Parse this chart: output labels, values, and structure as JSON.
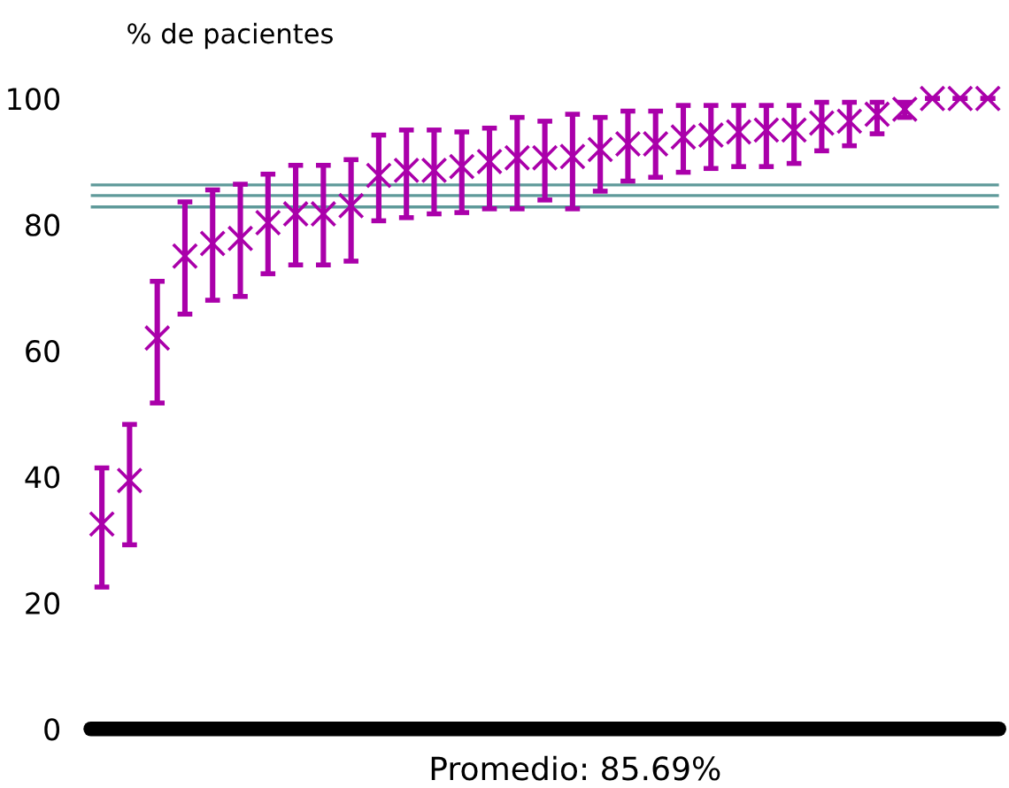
{
  "chart_data": {
    "type": "scatter",
    "ylabel": "% de pacientes",
    "annotations": [
      "Promedio: 85.69%"
    ],
    "categories": [
      null,
      null,
      null,
      null,
      null,
      null,
      null,
      null,
      null,
      null,
      null,
      null,
      null,
      null,
      null,
      null,
      null,
      null,
      null,
      null,
      null,
      null,
      null,
      null,
      null,
      null,
      null,
      null,
      null,
      null,
      null,
      null,
      null
    ],
    "series": [
      {
        "color": "#aa00aa",
        "values": [
          32.5,
          39.4,
          62,
          75,
          77,
          77.8,
          80.3,
          81.7,
          81.7,
          83,
          87.8,
          88.6,
          88.6,
          89.2,
          90,
          90.6,
          90.6,
          90.8,
          91.9,
          92.8,
          92.8,
          93.9,
          94.2,
          94.7,
          95,
          95,
          96.1,
          96.4,
          97.5,
          98.3,
          100,
          100,
          100
        ],
        "errors": [
          [
            22.5,
            41.4
          ],
          [
            29.2,
            48.3
          ],
          [
            51.7,
            71
          ],
          [
            65.8,
            83.6
          ],
          [
            68,
            85.5
          ],
          [
            68.6,
            86.4
          ],
          [
            72.2,
            88
          ],
          [
            73.6,
            89.4
          ],
          [
            73.6,
            89.4
          ],
          [
            74.2,
            90.3
          ],
          [
            80.6,
            94.2
          ],
          [
            81.1,
            95
          ],
          [
            81.7,
            95
          ],
          [
            81.9,
            94.7
          ],
          [
            82.5,
            95.3
          ],
          [
            82.5,
            97
          ],
          [
            83.9,
            96.4
          ],
          [
            82.5,
            97.5
          ],
          [
            85.3,
            97
          ],
          [
            86.9,
            98
          ],
          [
            87.5,
            98
          ],
          [
            88.3,
            98.9
          ],
          [
            88.9,
            98.9
          ],
          [
            89.2,
            98.9
          ],
          [
            89.2,
            98.9
          ],
          [
            89.7,
            98.9
          ],
          [
            91.7,
            99.4
          ],
          [
            92.5,
            99.4
          ],
          [
            94.4,
            99.4
          ],
          [
            97,
            99.4
          ],
          [
            100,
            100
          ],
          [
            100,
            100
          ],
          [
            100,
            100
          ]
        ]
      }
    ],
    "marker": "cross",
    "ylim": [
      0,
      100
    ],
    "yticks": [
      0,
      20,
      40,
      60,
      80,
      100
    ],
    "tick_labels": "y",
    "grid": false,
    "legend": false,
    "ref_lines": [
      {
        "axis": "y",
        "value": 86.3,
        "color": "#5f9a9a"
      },
      {
        "axis": "y",
        "value": 84.6,
        "color": "#5f9a9a"
      },
      {
        "axis": "y",
        "value": 82.8,
        "color": "#5f9a9a"
      }
    ]
  }
}
